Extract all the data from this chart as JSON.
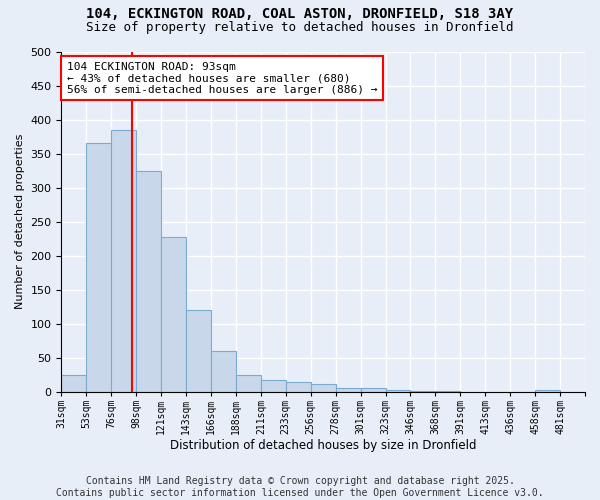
{
  "title1": "104, ECKINGTON ROAD, COAL ASTON, DRONFIELD, S18 3AY",
  "title2": "Size of property relative to detached houses in Dronfield",
  "xlabel": "Distribution of detached houses by size in Dronfield",
  "ylabel": "Number of detached properties",
  "categories": [
    "31sqm",
    "53sqm",
    "76sqm",
    "98sqm",
    "121sqm",
    "143sqm",
    "166sqm",
    "188sqm",
    "211sqm",
    "233sqm",
    "256sqm",
    "278sqm",
    "301sqm",
    "323sqm",
    "346sqm",
    "368sqm",
    "391sqm",
    "413sqm",
    "436sqm",
    "458sqm",
    "481sqm"
  ],
  "bar_heights": [
    25,
    365,
    385,
    325,
    228,
    120,
    60,
    25,
    18,
    15,
    12,
    6,
    5,
    2,
    1,
    1,
    0,
    0,
    0,
    3,
    0
  ],
  "bar_color": "#c8d8ea",
  "bar_edge_color": "#7baad0",
  "vline_x": 2.84,
  "vline_color": "red",
  "annotation_text": "104 ECKINGTON ROAD: 93sqm\n← 43% of detached houses are smaller (680)\n56% of semi-detached houses are larger (886) →",
  "annotation_box_color": "white",
  "annotation_box_edge_color": "red",
  "ylim": [
    0,
    500
  ],
  "yticks": [
    0,
    50,
    100,
    150,
    200,
    250,
    300,
    350,
    400,
    450,
    500
  ],
  "background_color": "#e8eef8",
  "footer": "Contains HM Land Registry data © Crown copyright and database right 2025.\nContains public sector information licensed under the Open Government Licence v3.0.",
  "title_fontsize": 10,
  "subtitle_fontsize": 9,
  "footer_fontsize": 7,
  "grid_color": "#d0d8e8",
  "annot_fontsize": 8
}
